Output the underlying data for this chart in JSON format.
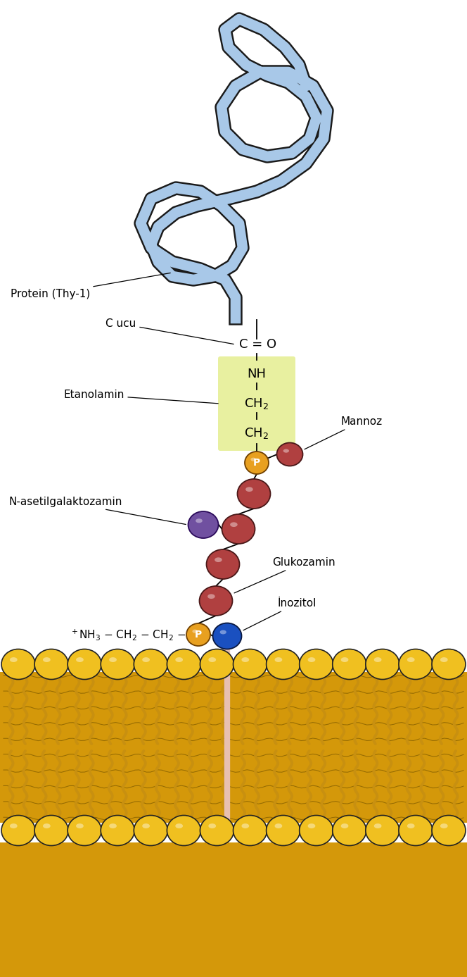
{
  "bg_color": "#ffffff",
  "protein_color": "#a8c8e8",
  "protein_outline": "#1a1a1a",
  "ethanolamine_box_color": "#e8f0a0",
  "phosphate_color": "#e8a020",
  "mannose_color": "#b04040",
  "glucosamine_color": "#7050a0",
  "inositol_color": "#1a50c0",
  "membrane_head_color": "#f0c020",
  "membrane_outline": "#222222",
  "lipid_anchor_color": "#e8c0b0",
  "tail_color": "#c89010",
  "membrane_fill": "#d4980a",
  "membrane_inner_fill": "#c88a08",
  "labels": {
    "protein": "Protein (Thy-1)",
    "c_terminus": "C ucu",
    "ethanolamine": "Etanolamin",
    "mannose": "Mannoz",
    "n_acetylgalactosamine": "N-asetilgalaktozamin",
    "glucosamine": "Glukozamin",
    "inositol": "İnozitol",
    "nh3_chain": "$^+$NH$_3$ − CH$_2$ − CH$_2$ −"
  },
  "figsize": [
    6.64,
    13.87
  ],
  "dpi": 100
}
